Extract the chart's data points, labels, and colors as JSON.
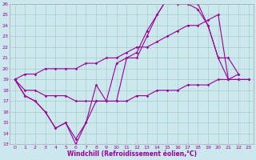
{
  "xlabel": "Windchill (Refroidissement éolien,°C)",
  "xlim": [
    -0.5,
    23.5
  ],
  "ylim": [
    13,
    26
  ],
  "yticks": [
    13,
    14,
    15,
    16,
    17,
    18,
    19,
    20,
    21,
    22,
    23,
    24,
    25,
    26
  ],
  "xticks": [
    0,
    1,
    2,
    3,
    4,
    5,
    6,
    7,
    8,
    9,
    10,
    11,
    12,
    13,
    14,
    15,
    16,
    17,
    18,
    19,
    20,
    21,
    22,
    23
  ],
  "bg_color": "#cce8ee",
  "line_color": "#990099",
  "series": [
    {
      "x": [
        0,
        1,
        2,
        3,
        4,
        5,
        6,
        7,
        8,
        9,
        10,
        11,
        12,
        13,
        14,
        15,
        16,
        17,
        18,
        19,
        20,
        21,
        22
      ],
      "y": [
        19,
        17.5,
        17,
        16,
        14.5,
        15,
        13,
        15,
        18.5,
        17,
        20.5,
        21,
        21,
        23,
        25,
        26.5,
        26,
        26,
        26,
        24,
        21,
        19,
        19.5
      ]
    },
    {
      "x": [
        0,
        1,
        2,
        3,
        4,
        5,
        6,
        7,
        8,
        9,
        10,
        11,
        12,
        13,
        14,
        15,
        16,
        17,
        18,
        19,
        20,
        21,
        22
      ],
      "y": [
        19,
        17.5,
        17,
        16,
        14.5,
        15,
        13.5,
        15,
        17,
        17,
        17,
        21,
        21.5,
        23.5,
        25,
        26.5,
        26,
        26,
        25.5,
        24,
        21,
        21,
        19.5
      ]
    },
    {
      "x": [
        0,
        1,
        2,
        3,
        4,
        5,
        6,
        7,
        8,
        9,
        10,
        11,
        12,
        13,
        14,
        15,
        16,
        17,
        18,
        19,
        20,
        21,
        22,
        23
      ],
      "y": [
        19,
        18,
        18,
        17.5,
        17.5,
        17.5,
        17,
        17,
        17,
        17,
        17,
        17,
        17.5,
        17.5,
        18,
        18,
        18,
        18.5,
        18.5,
        18.5,
        19,
        19,
        19,
        19
      ]
    },
    {
      "x": [
        0,
        1,
        2,
        3,
        4,
        5,
        6,
        7,
        8,
        9,
        10,
        11,
        12,
        13,
        14,
        15,
        16,
        17,
        18,
        19,
        20,
        21,
        22,
        23
      ],
      "y": [
        19,
        19.5,
        19.5,
        20,
        20,
        20,
        20,
        20.5,
        20.5,
        21,
        21,
        21.5,
        22,
        22,
        22.5,
        23,
        23.5,
        24,
        24,
        24.5,
        25,
        19,
        19,
        19
      ]
    }
  ]
}
